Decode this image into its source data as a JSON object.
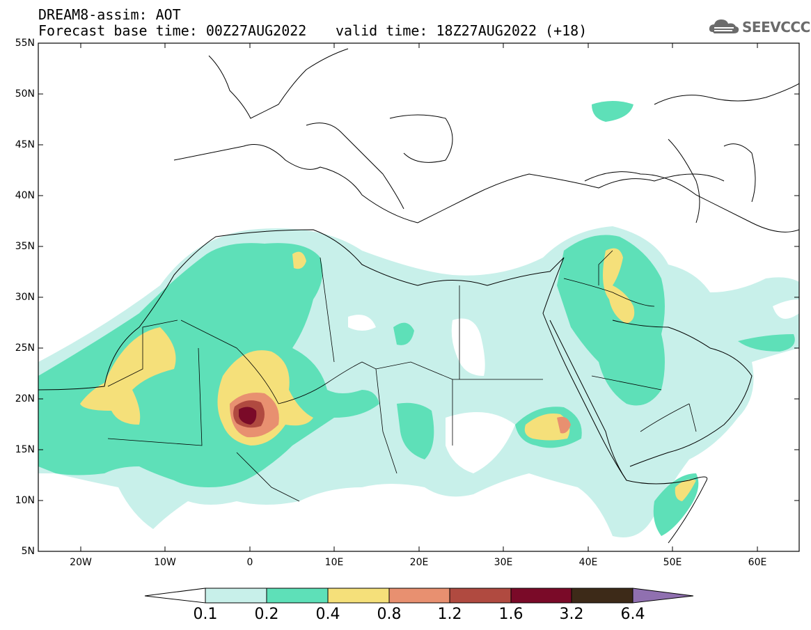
{
  "header": {
    "model": "DREAM8-assim: AOT",
    "base_time": "Forecast base time: 00Z27AUG2022",
    "valid_time": "valid time: 18Z27AUG2022 (+18)"
  },
  "logo": {
    "text": "SEEVCCC",
    "icon": "cloud-icon"
  },
  "map": {
    "lat_labels": [
      "55N",
      "50N",
      "45N",
      "40N",
      "35N",
      "30N",
      "25N",
      "20N",
      "15N",
      "10N",
      "5N"
    ],
    "lon_labels": [
      "20W",
      "10W",
      "0",
      "10E",
      "20E",
      "30E",
      "40E",
      "50E",
      "60E"
    ],
    "lon_range": [
      -25,
      65
    ],
    "lat_range": [
      5,
      55
    ]
  },
  "colorbar": {
    "ticks": [
      "0.1",
      "0.2",
      "0.4",
      "0.8",
      "1.2",
      "1.6",
      "3.2",
      "6.4"
    ],
    "colors": [
      "#c8f0ea",
      "#5ee0b8",
      "#f5e07a",
      "#e89070",
      "#b04a40",
      "#7a0a28",
      "#3d2a18",
      "#9070b0"
    ],
    "under_color": "#ffffff"
  }
}
